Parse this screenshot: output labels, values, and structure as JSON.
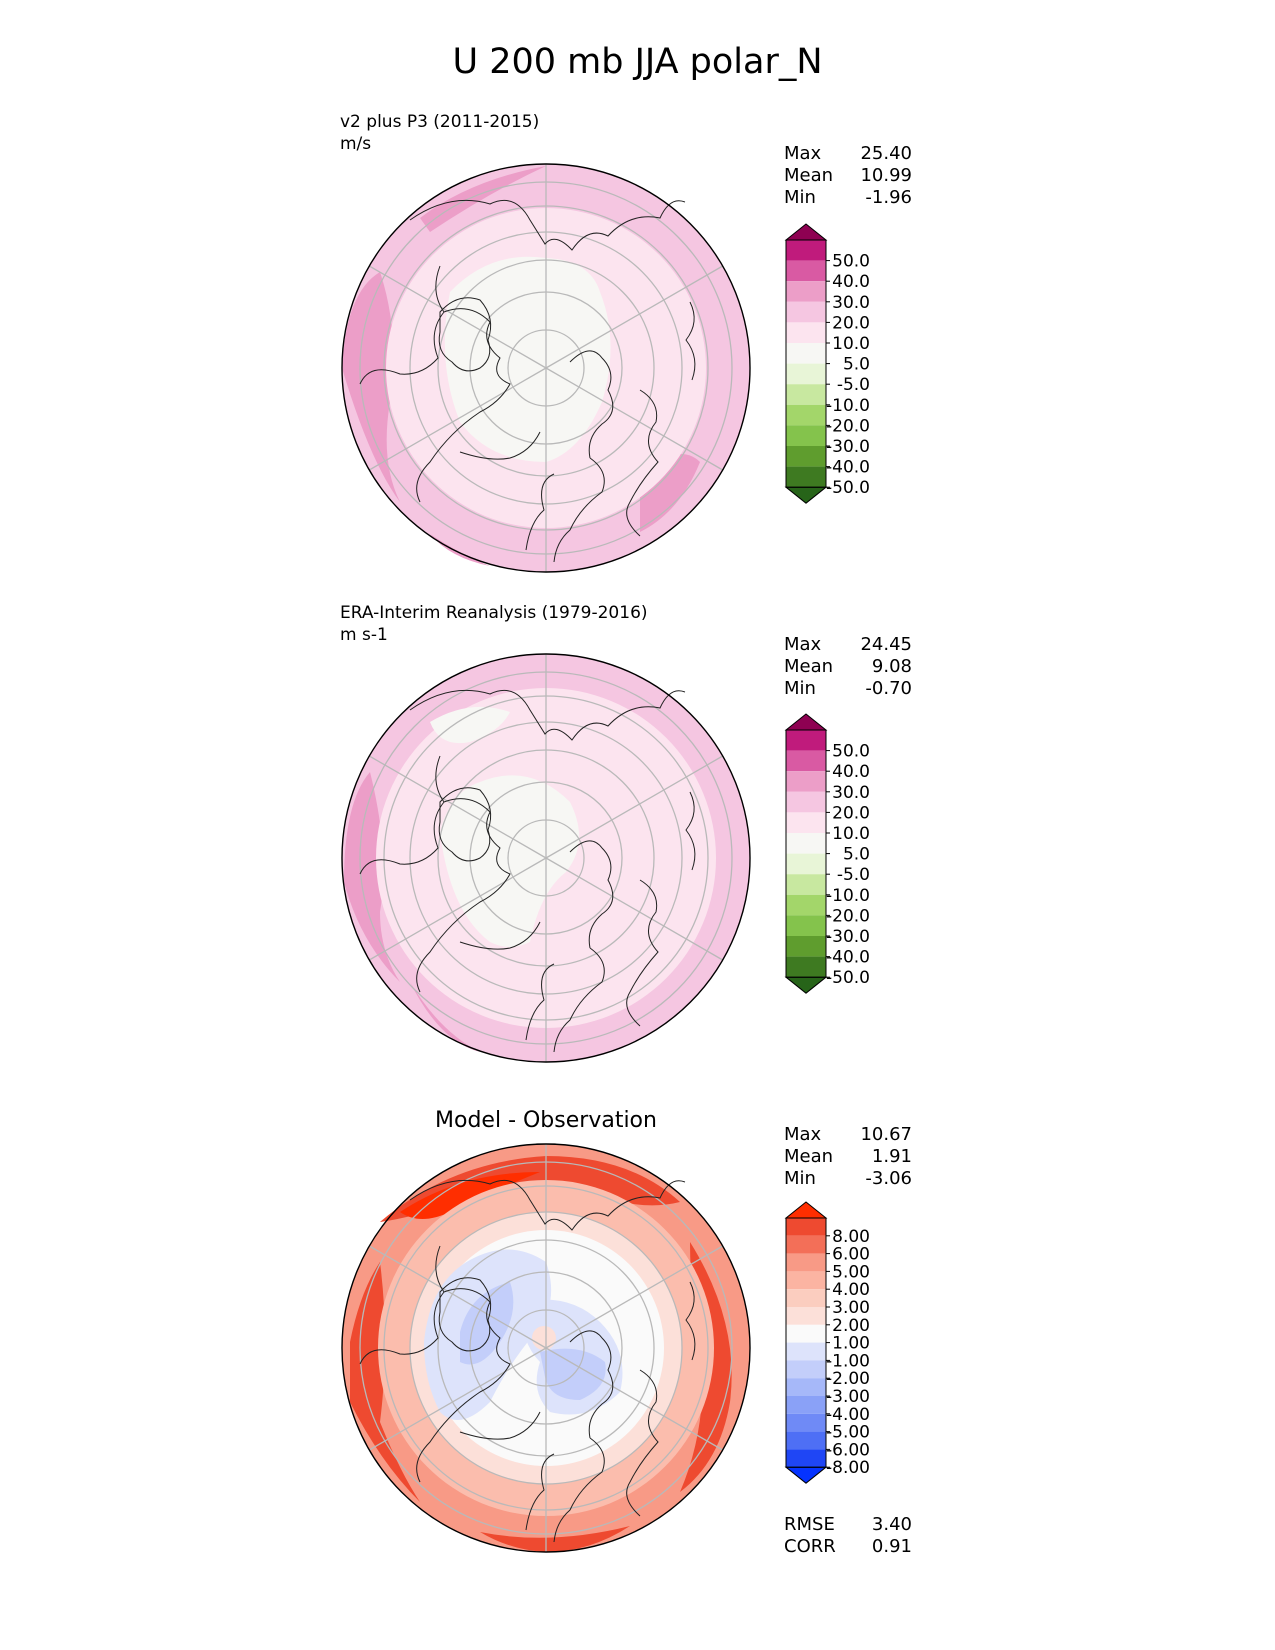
{
  "title": "U 200 mb JJA polar_N",
  "colors": {
    "positive_sequential": [
      "#f7f7f4",
      "#fce4ef",
      "#f5c6e1",
      "#ec9ec8",
      "#d95aa3",
      "#c01b7c",
      "#8e0152"
    ],
    "negative_sequential": [
      "#e8f5d7",
      "#c8e8a0",
      "#a3d66a",
      "#84c34c",
      "#5f9d2e",
      "#3e7a21",
      "#276419"
    ],
    "diff_positive": [
      "#fce0d9",
      "#fbbdad",
      "#f89a86",
      "#f36f58",
      "#ee4a30",
      "#ff2e00"
    ],
    "diff_negative": [
      "#dde3fb",
      "#c3cefa",
      "#a6b8f9",
      "#8aa1f7",
      "#6f8af6",
      "#4e6ff5",
      "#1f46f5",
      "#0533ff"
    ]
  },
  "panels": [
    {
      "id": "test",
      "name": "v2 plus P3 (2011-2015)",
      "units": "m/s",
      "stats": {
        "max_label": "Max",
        "max": "25.40",
        "mean_label": "Mean",
        "mean": "10.99",
        "min_label": "Min",
        "min": "-1.96"
      },
      "colorbar_labels": [
        "50.0",
        "40.0",
        "30.0",
        "20.0",
        "10.0",
        "5.0",
        "-5.0",
        "-10.0",
        "-20.0",
        "-30.0",
        "-40.0",
        "-50.0"
      ]
    },
    {
      "id": "reference",
      "name": "ERA-Interim Reanalysis (1979-2016)",
      "units": "m s-1",
      "stats": {
        "max_label": "Max",
        "max": "24.45",
        "mean_label": "Mean",
        "mean": "9.08",
        "min_label": "Min",
        "min": "-0.70"
      },
      "colorbar_labels": [
        "50.0",
        "40.0",
        "30.0",
        "20.0",
        "10.0",
        "5.0",
        "-5.0",
        "-10.0",
        "-20.0",
        "-30.0",
        "-40.0",
        "-50.0"
      ]
    },
    {
      "id": "difference",
      "name": "Model - Observation",
      "stats": {
        "max_label": "Max",
        "max": "10.67",
        "mean_label": "Mean",
        "mean": "1.91",
        "min_label": "Min",
        "min": "-3.06"
      },
      "colorbar_labels": [
        "8.00",
        "6.00",
        "5.00",
        "4.00",
        "3.00",
        "2.00",
        "1.00",
        "-1.00",
        "-2.00",
        "-3.00",
        "-4.00",
        "-5.00",
        "-6.00",
        "-8.00"
      ],
      "metrics": {
        "rmse_label": "RMSE",
        "rmse": "3.40",
        "corr_label": "CORR",
        "corr": "0.91"
      }
    }
  ],
  "chart_data": [
    {
      "type": "heatmap",
      "projection": "north polar stereographic",
      "title": "v2 plus P3 (2011-2015)",
      "units": "m/s",
      "levels": [
        -50,
        -40,
        -30,
        -20,
        -10,
        -5,
        5,
        10,
        20,
        30,
        40,
        50
      ],
      "extend": "both",
      "stats": {
        "max": 25.4,
        "mean": 10.99,
        "min": -1.96
      }
    },
    {
      "type": "heatmap",
      "projection": "north polar stereographic",
      "title": "ERA-Interim Reanalysis (1979-2016)",
      "units": "m s-1",
      "levels": [
        -50,
        -40,
        -30,
        -20,
        -10,
        -5,
        5,
        10,
        20,
        30,
        40,
        50
      ],
      "extend": "both",
      "stats": {
        "max": 24.45,
        "mean": 9.08,
        "min": -0.7
      }
    },
    {
      "type": "heatmap",
      "projection": "north polar stereographic",
      "title": "Model - Observation",
      "levels": [
        -8,
        -6,
        -5,
        -4,
        -3,
        -2,
        -1,
        1,
        2,
        3,
        4,
        5,
        6,
        8
      ],
      "extend": "both",
      "stats": {
        "max": 10.67,
        "mean": 1.91,
        "min": -3.06
      },
      "metrics": {
        "rmse": 3.4,
        "corr": 0.91
      }
    }
  ]
}
